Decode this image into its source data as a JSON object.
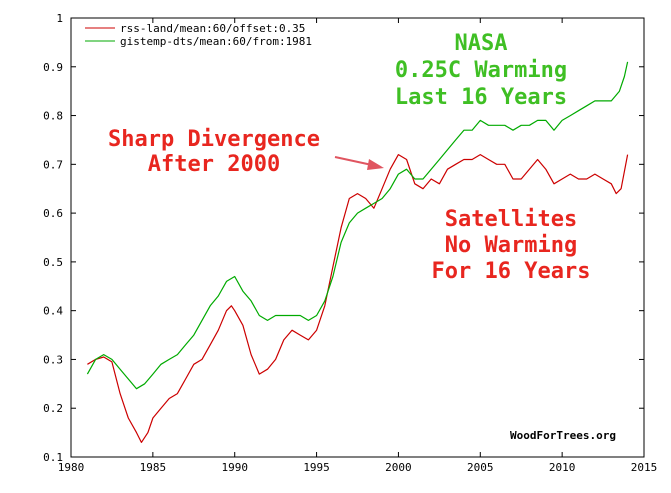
{
  "colors": {
    "rss": "#cc0000",
    "gistemp": "#00aa00",
    "annotation_red": "#e8261f",
    "annotation_green": "#3fbf24",
    "arrow": "#e05560"
  },
  "chart_data": {
    "type": "line",
    "xlim": [
      1980,
      2015
    ],
    "ylim": [
      0.1,
      1.0
    ],
    "xticks": [
      1980,
      1985,
      1990,
      1995,
      2000,
      2005,
      2010,
      2015
    ],
    "yticks": [
      0.1,
      0.2,
      0.3,
      0.4,
      0.5,
      0.6,
      0.7,
      0.8,
      0.9,
      1.0
    ],
    "ytick_labels": [
      "0.1",
      "0.2",
      "0.3",
      "0.4",
      "0.5",
      "0.6",
      "0.7",
      "0.8",
      "0.9",
      "1"
    ],
    "grid": false,
    "legend_position": "top-left",
    "series": [
      {
        "name": "rss-land/mean:60/offset:0.35",
        "color": "#cc0000",
        "points": [
          [
            1981.0,
            0.29
          ],
          [
            1981.5,
            0.3
          ],
          [
            1982.0,
            0.305
          ],
          [
            1982.5,
            0.295
          ],
          [
            1983.0,
            0.23
          ],
          [
            1983.5,
            0.18
          ],
          [
            1984.0,
            0.15
          ],
          [
            1984.3,
            0.13
          ],
          [
            1984.7,
            0.15
          ],
          [
            1985.0,
            0.18
          ],
          [
            1985.5,
            0.2
          ],
          [
            1986.0,
            0.22
          ],
          [
            1986.5,
            0.23
          ],
          [
            1987.0,
            0.26
          ],
          [
            1987.5,
            0.29
          ],
          [
            1988.0,
            0.3
          ],
          [
            1988.5,
            0.33
          ],
          [
            1989.0,
            0.36
          ],
          [
            1989.5,
            0.4
          ],
          [
            1989.8,
            0.41
          ],
          [
            1990.0,
            0.4
          ],
          [
            1990.5,
            0.37
          ],
          [
            1991.0,
            0.31
          ],
          [
            1991.5,
            0.27
          ],
          [
            1992.0,
            0.28
          ],
          [
            1992.5,
            0.3
          ],
          [
            1993.0,
            0.34
          ],
          [
            1993.5,
            0.36
          ],
          [
            1994.0,
            0.35
          ],
          [
            1994.5,
            0.34
          ],
          [
            1995.0,
            0.36
          ],
          [
            1995.5,
            0.41
          ],
          [
            1996.0,
            0.49
          ],
          [
            1996.5,
            0.57
          ],
          [
            1997.0,
            0.63
          ],
          [
            1997.5,
            0.64
          ],
          [
            1998.0,
            0.63
          ],
          [
            1998.5,
            0.61
          ],
          [
            1999.0,
            0.65
          ],
          [
            1999.5,
            0.69
          ],
          [
            2000.0,
            0.72
          ],
          [
            2000.5,
            0.71
          ],
          [
            2001.0,
            0.66
          ],
          [
            2001.5,
            0.65
          ],
          [
            2002.0,
            0.67
          ],
          [
            2002.5,
            0.66
          ],
          [
            2003.0,
            0.69
          ],
          [
            2003.5,
            0.7
          ],
          [
            2004.0,
            0.71
          ],
          [
            2004.5,
            0.71
          ],
          [
            2005.0,
            0.72
          ],
          [
            2005.5,
            0.71
          ],
          [
            2006.0,
            0.7
          ],
          [
            2006.5,
            0.7
          ],
          [
            2007.0,
            0.67
          ],
          [
            2007.5,
            0.67
          ],
          [
            2008.0,
            0.69
          ],
          [
            2008.5,
            0.71
          ],
          [
            2009.0,
            0.69
          ],
          [
            2009.5,
            0.66
          ],
          [
            2010.0,
            0.67
          ],
          [
            2010.5,
            0.68
          ],
          [
            2011.0,
            0.67
          ],
          [
            2011.5,
            0.67
          ],
          [
            2012.0,
            0.68
          ],
          [
            2012.5,
            0.67
          ],
          [
            2013.0,
            0.66
          ],
          [
            2013.3,
            0.64
          ],
          [
            2013.6,
            0.65
          ],
          [
            2014.0,
            0.72
          ]
        ]
      },
      {
        "name": "gistemp-dts/mean:60/from:1981",
        "color": "#00aa00",
        "points": [
          [
            1981.0,
            0.27
          ],
          [
            1981.5,
            0.3
          ],
          [
            1982.0,
            0.31
          ],
          [
            1982.5,
            0.3
          ],
          [
            1983.0,
            0.28
          ],
          [
            1983.5,
            0.26
          ],
          [
            1984.0,
            0.24
          ],
          [
            1984.5,
            0.25
          ],
          [
            1985.0,
            0.27
          ],
          [
            1985.5,
            0.29
          ],
          [
            1986.0,
            0.3
          ],
          [
            1986.5,
            0.31
          ],
          [
            1987.0,
            0.33
          ],
          [
            1987.5,
            0.35
          ],
          [
            1988.0,
            0.38
          ],
          [
            1988.5,
            0.41
          ],
          [
            1989.0,
            0.43
          ],
          [
            1989.5,
            0.46
          ],
          [
            1990.0,
            0.47
          ],
          [
            1990.5,
            0.44
          ],
          [
            1991.0,
            0.42
          ],
          [
            1991.5,
            0.39
          ],
          [
            1992.0,
            0.38
          ],
          [
            1992.5,
            0.39
          ],
          [
            1993.0,
            0.39
          ],
          [
            1993.5,
            0.39
          ],
          [
            1994.0,
            0.39
          ],
          [
            1994.5,
            0.38
          ],
          [
            1995.0,
            0.39
          ],
          [
            1995.5,
            0.42
          ],
          [
            1996.0,
            0.47
          ],
          [
            1996.5,
            0.54
          ],
          [
            1997.0,
            0.58
          ],
          [
            1997.5,
            0.6
          ],
          [
            1998.0,
            0.61
          ],
          [
            1998.5,
            0.62
          ],
          [
            1999.0,
            0.63
          ],
          [
            1999.5,
            0.65
          ],
          [
            2000.0,
            0.68
          ],
          [
            2000.5,
            0.69
          ],
          [
            2001.0,
            0.67
          ],
          [
            2001.5,
            0.67
          ],
          [
            2002.0,
            0.69
          ],
          [
            2002.5,
            0.71
          ],
          [
            2003.0,
            0.73
          ],
          [
            2003.5,
            0.75
          ],
          [
            2004.0,
            0.77
          ],
          [
            2004.5,
            0.77
          ],
          [
            2005.0,
            0.79
          ],
          [
            2005.5,
            0.78
          ],
          [
            2006.0,
            0.78
          ],
          [
            2006.5,
            0.78
          ],
          [
            2007.0,
            0.77
          ],
          [
            2007.5,
            0.78
          ],
          [
            2008.0,
            0.78
          ],
          [
            2008.5,
            0.79
          ],
          [
            2009.0,
            0.79
          ],
          [
            2009.5,
            0.77
          ],
          [
            2010.0,
            0.79
          ],
          [
            2010.5,
            0.8
          ],
          [
            2011.0,
            0.81
          ],
          [
            2011.5,
            0.82
          ],
          [
            2012.0,
            0.83
          ],
          [
            2012.5,
            0.83
          ],
          [
            2013.0,
            0.83
          ],
          [
            2013.5,
            0.85
          ],
          [
            2013.8,
            0.88
          ],
          [
            2014.0,
            0.91
          ]
        ]
      }
    ],
    "annotations": [
      {
        "lines": [
          "NASA",
          "0.25C Warming",
          "Last 16 Years"
        ],
        "color": "#3fbf24"
      },
      {
        "lines": [
          "Sharp Divergence",
          "After 2000"
        ],
        "color": "#e8261f"
      },
      {
        "lines": [
          "Satellites",
          "No Warming",
          "For 16 Years"
        ],
        "color": "#e8261f"
      }
    ],
    "credit": "WoodForTrees.org"
  }
}
